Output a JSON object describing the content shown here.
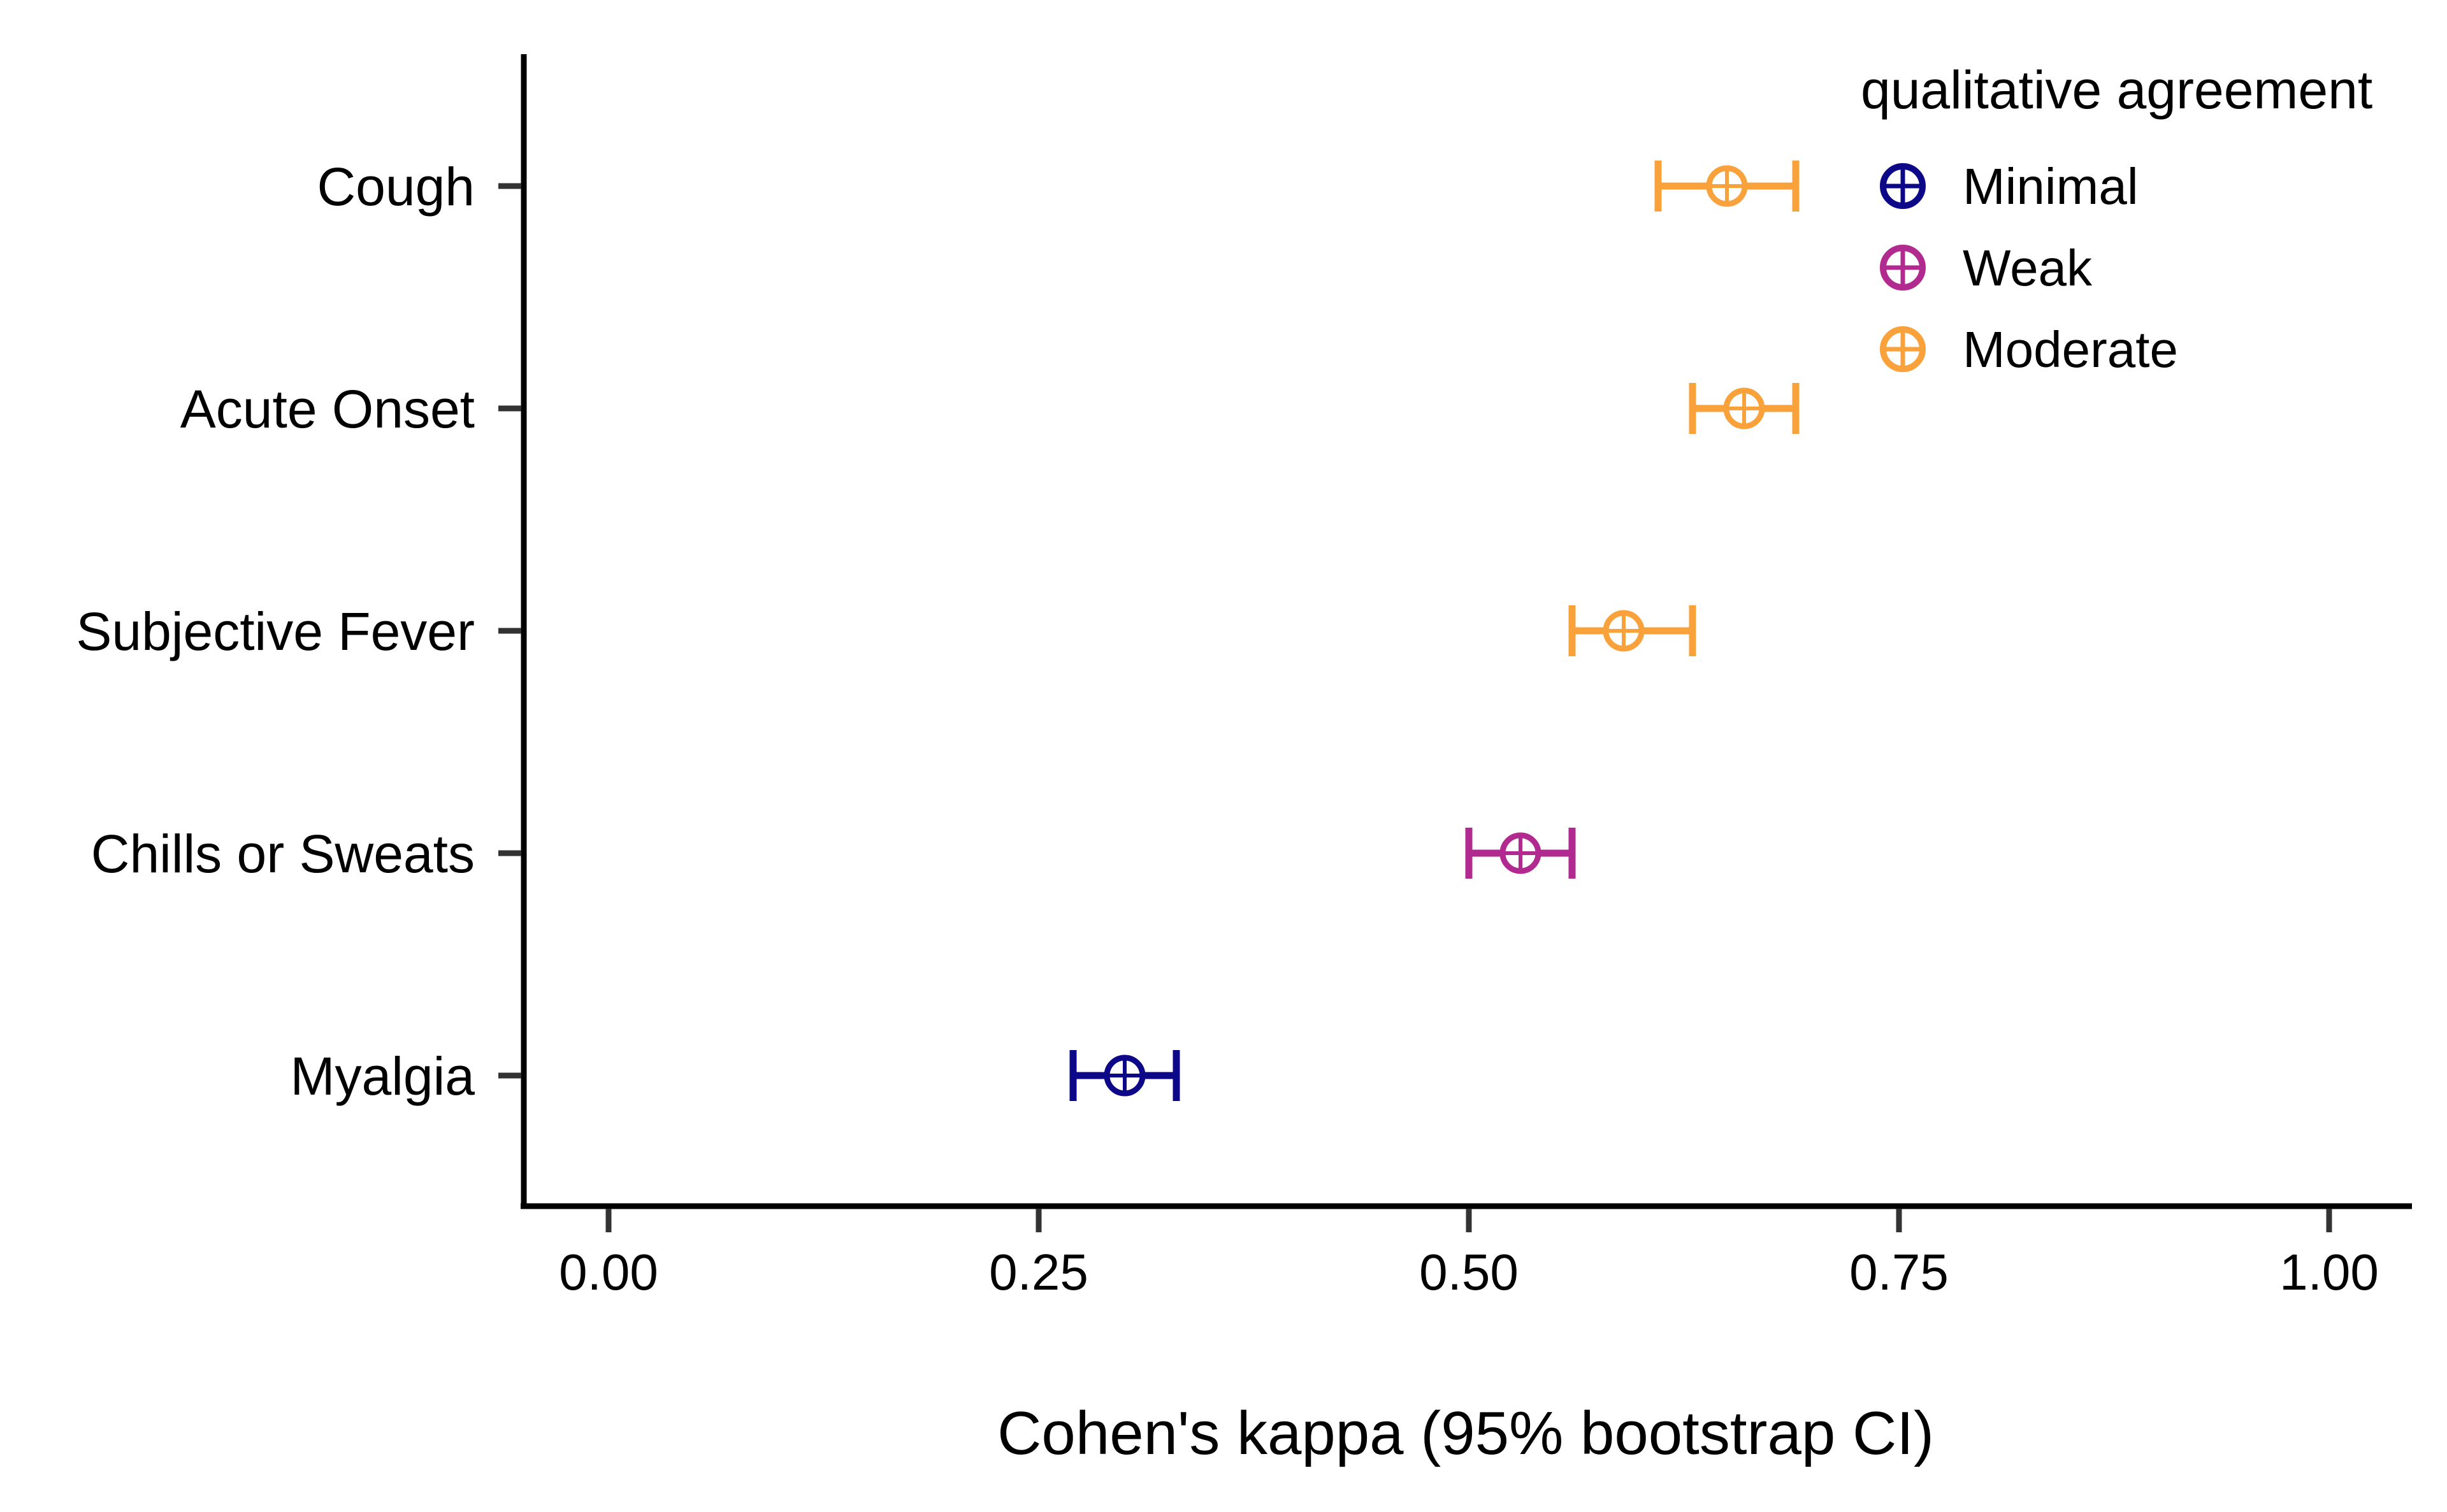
{
  "chart_data": {
    "type": "scatter",
    "subtype": "forest-plot-horizontal-errorbars",
    "title": "",
    "xlabel": "Cohen's kappa (95% bootstrap CI)",
    "ylabel": "",
    "xlim": [
      -0.02,
      1.05
    ],
    "xticks": [
      0.0,
      0.25,
      0.5,
      0.75,
      1.0
    ],
    "xtick_labels": [
      "0.00",
      "0.25",
      "0.50",
      "0.75",
      "1.00"
    ],
    "categories": [
      "Cough",
      "Acute Onset",
      "Subjective Fever",
      "Chills or Sweats",
      "Myalgia"
    ],
    "points": [
      {
        "category": "Cough",
        "estimate": 0.65,
        "lower": 0.61,
        "upper": 0.69,
        "agreement": "Moderate"
      },
      {
        "category": "Acute Onset",
        "estimate": 0.66,
        "lower": 0.63,
        "upper": 0.69,
        "agreement": "Moderate"
      },
      {
        "category": "Subjective Fever",
        "estimate": 0.59,
        "lower": 0.56,
        "upper": 0.63,
        "agreement": "Moderate"
      },
      {
        "category": "Chills or Sweats",
        "estimate": 0.53,
        "lower": 0.5,
        "upper": 0.56,
        "agreement": "Weak"
      },
      {
        "category": "Myalgia",
        "estimate": 0.3,
        "lower": 0.27,
        "upper": 0.33,
        "agreement": "Minimal"
      }
    ],
    "legend": {
      "title": "qualitative agreement",
      "position": "top-right",
      "entries": [
        {
          "label": "Minimal",
          "color": "#0d0887"
        },
        {
          "label": "Weak",
          "color": "#b02a8f"
        },
        {
          "label": "Moderate",
          "color": "#f9a13a"
        }
      ]
    },
    "grid": false
  }
}
